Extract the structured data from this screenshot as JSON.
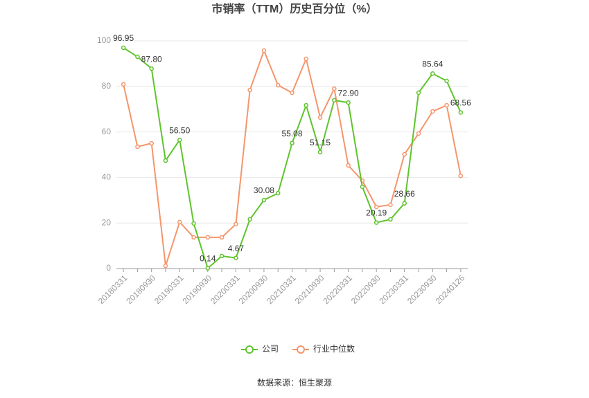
{
  "chart_data": {
    "type": "line",
    "title": "市销率（TTM）历史百分位（%）",
    "categories": [
      "20180331",
      null,
      "20180930",
      null,
      "20190331",
      null,
      "20190930",
      null,
      "20200331",
      null,
      "20200930",
      null,
      "20210331",
      null,
      "20210930",
      null,
      "20220331",
      null,
      "20220930",
      null,
      "20230331",
      null,
      "20230930",
      null,
      "20240126"
    ],
    "series": [
      {
        "name": "公司",
        "color": "#5ec42b",
        "values": [
          96.95,
          93.0,
          87.8,
          47.4,
          56.5,
          19.8,
          0.14,
          5.5,
          4.67,
          21.6,
          30.08,
          33.1,
          55.08,
          71.7,
          51.15,
          73.9,
          72.9,
          35.9,
          20.19,
          21.6,
          28.66,
          77.2,
          85.64,
          82.4,
          68.56
        ],
        "value_labels": [
          "96.95",
          null,
          "87.80",
          null,
          "56.50",
          null,
          "0.14",
          null,
          "4.67",
          null,
          "30.08",
          null,
          "55.08",
          null,
          "51.15",
          null,
          "72.90",
          null,
          "20.19",
          null,
          "28.66",
          null,
          "85.64",
          null,
          "68.56"
        ]
      },
      {
        "name": "行业中位数",
        "color": "#f5956b",
        "values": [
          80.9,
          53.5,
          55.0,
          1.2,
          20.4,
          13.7,
          13.7,
          13.7,
          19.5,
          78.4,
          95.7,
          80.5,
          77.2,
          92.1,
          66.3,
          79.0,
          45.3,
          38.6,
          27.1,
          28.0,
          50.2,
          59.3,
          69.0,
          71.7,
          40.7
        ]
      }
    ],
    "ylim": [
      0,
      100
    ],
    "yticks": [
      0,
      20,
      40,
      60,
      80,
      100
    ],
    "grid": true,
    "source": "数据来源：恒生聚源"
  }
}
